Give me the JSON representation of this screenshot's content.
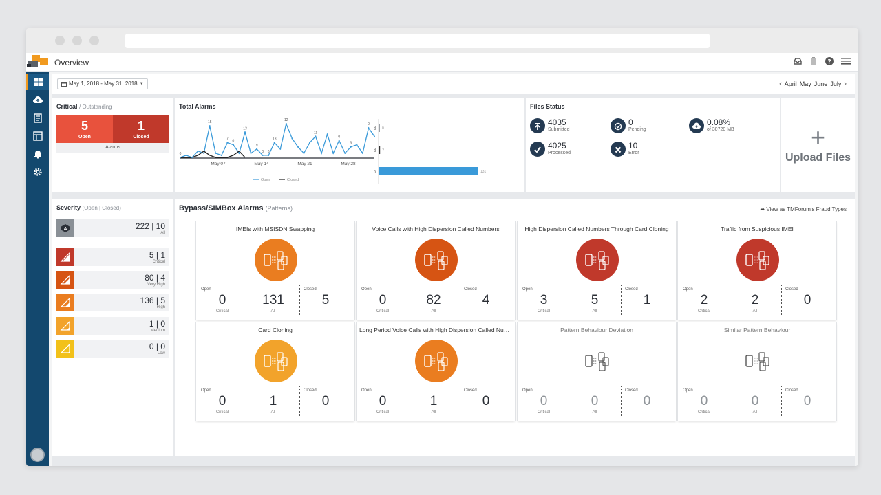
{
  "app": {
    "title": "Overview"
  },
  "daterange": {
    "label": "May 1, 2018 - May 31, 2018"
  },
  "months": [
    "April",
    "May",
    "June",
    "July"
  ],
  "critical": {
    "title": "Critical",
    "subtitle": "/ Outstanding",
    "open_value": "5",
    "open_label": "Open",
    "closed_value": "1",
    "closed_label": "Closed",
    "footer": "Alarms"
  },
  "total_alarms": {
    "title": "Total Alarms",
    "legend_open": "Open",
    "legend_closed": "Closed",
    "colors": {
      "open": "#3a9ad9",
      "closed": "#222222"
    }
  },
  "chart_data": [
    {
      "type": "line",
      "title": "Total Alarms",
      "x_ticks": [
        "May 07",
        "May 14",
        "May 21",
        "May 28"
      ],
      "y_range": [
        0,
        17
      ],
      "series": [
        {
          "name": "Open",
          "values": [
            0,
            1,
            0,
            3,
            2,
            15,
            2,
            1,
            7,
            6,
            2,
            12,
            2,
            4,
            1,
            1,
            7,
            4,
            16,
            9,
            5,
            2,
            7,
            10,
            2,
            11,
            2,
            8,
            2,
            5,
            6,
            2,
            14,
            10
          ]
        },
        {
          "name": "Closed",
          "values": [
            0,
            0,
            0,
            1,
            3,
            1,
            0,
            0,
            0,
            1,
            3,
            0
          ]
        }
      ],
      "point_labels": [
        "0",
        "15",
        "0",
        "7",
        "13",
        "9",
        "0",
        "0",
        "13",
        "12",
        "11",
        "0",
        "3",
        "0"
      ]
    },
    {
      "type": "bar",
      "orientation": "horizontal",
      "categories": [
        "Not Fraud",
        "Fraud",
        "Open"
      ],
      "values": [
        0,
        2,
        131
      ],
      "data_labels": [
        "0",
        "2",
        "131"
      ],
      "colors": [
        "#9aa0a6",
        "#333333",
        "#3a9ad9"
      ]
    }
  ],
  "files_status": {
    "title": "Files Status",
    "items": [
      {
        "icon": "upload-icon",
        "value": "4035",
        "label": "Submitted"
      },
      {
        "icon": "pending-icon",
        "value": "0",
        "label": "Pending"
      },
      {
        "icon": "cloud-icon",
        "value": "0.08%",
        "label": "of 30720 MB"
      },
      {
        "icon": "check-icon",
        "value": "4025",
        "label": "Processed"
      },
      {
        "icon": "error-icon",
        "value": "10",
        "label": "Error"
      }
    ]
  },
  "upload": {
    "label": "Upload Files"
  },
  "severity": {
    "title": "Severity",
    "subtitle": "(Open | Closed)",
    "rows": [
      {
        "value": "222 | 10",
        "label": "All",
        "color": "#8a9096"
      },
      {
        "value": "5 | 1",
        "label": "Critical",
        "color": "#c0392b"
      },
      {
        "value": "80 | 4",
        "label": "Very High",
        "color": "#d65413"
      },
      {
        "value": "136 | 5",
        "label": "High",
        "color": "#ea7d20"
      },
      {
        "value": "1 | 0",
        "label": "Medium",
        "color": "#f2a32b"
      },
      {
        "value": "0 | 0",
        "label": "Low",
        "color": "#f2c11a"
      }
    ]
  },
  "bypass": {
    "title": "Bypass/SIMBox Alarms",
    "subtitle": "(Patterns)",
    "link": "View as TMForum's Fraud Types",
    "open_label": "Open",
    "closed_label": "Closed",
    "critical_label": "Critical",
    "all_label": "All",
    "cards": [
      {
        "title": "IMEIs with MSISDN Swapping",
        "color": "#ea7d20",
        "critical": "0",
        "all": "131",
        "closed": "5"
      },
      {
        "title": "Voice Calls with High Dispersion Called Numbers",
        "color": "#d65413",
        "critical": "0",
        "all": "82",
        "closed": "4"
      },
      {
        "title": "High Dispersion Called Numbers Through Card Cloning",
        "color": "#c0392b",
        "critical": "3",
        "all": "5",
        "closed": "1"
      },
      {
        "title": "Traffic from Suspicious IMEI",
        "color": "#c0392b",
        "critical": "2",
        "all": "2",
        "closed": "0"
      },
      {
        "title": "Card Cloning",
        "color": "#f2a32b",
        "critical": "0",
        "all": "1",
        "closed": "0"
      },
      {
        "title": "Long Period Voice Calls with High Dispersion Called Numbe...",
        "color": "#ea7d20",
        "critical": "0",
        "all": "1",
        "closed": "0"
      },
      {
        "title": "Pattern Behaviour Deviation",
        "color": "none",
        "critical": "0",
        "all": "0",
        "closed": "0"
      },
      {
        "title": "Similar Pattern Behaviour",
        "color": "none",
        "critical": "0",
        "all": "0",
        "closed": "0"
      }
    ]
  }
}
